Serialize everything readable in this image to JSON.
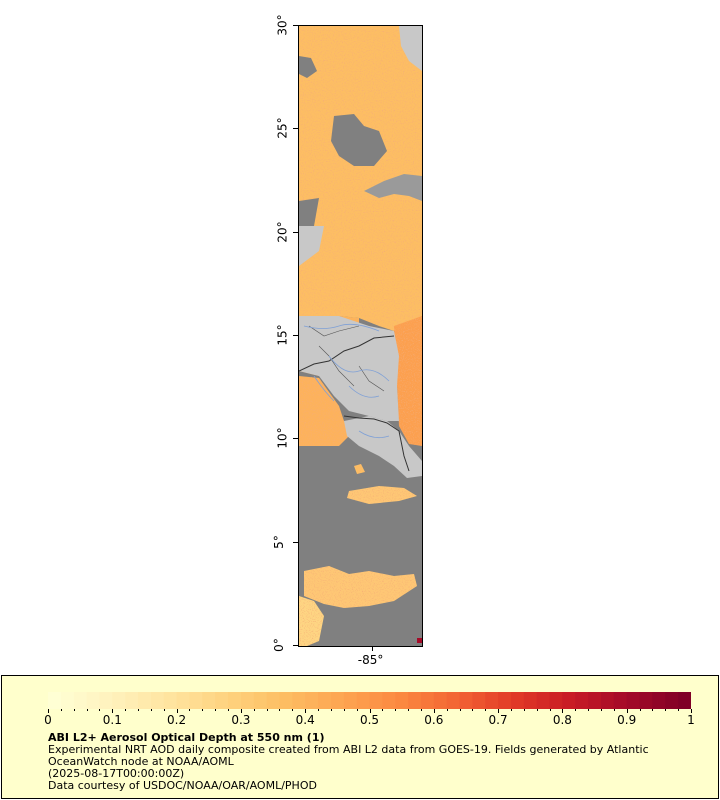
{
  "map": {
    "lat_labels": [
      "0°",
      "5°",
      "10°",
      "15°",
      "20°",
      "25°",
      "30°"
    ],
    "lat_values": [
      0,
      5,
      10,
      15,
      20,
      25,
      30
    ],
    "lon_labels": [
      "-85°"
    ],
    "lon_values": [
      -85
    ],
    "colors": {
      "land": "#c8c8c8",
      "no_data": "#808080",
      "border": "#333333",
      "rivers": "#7fa0d6"
    }
  },
  "legend": {
    "tick_labels": [
      "0",
      "0.1",
      "0.2",
      "0.3",
      "0.4",
      "0.5",
      "0.6",
      "0.7",
      "0.8",
      "0.9",
      "1"
    ],
    "title": "ABI L2+ Aerosol Optical Depth at 550 nm (1)",
    "line1": "Experimental NRT AOD daily composite created from ABI L2 data from GOES-19. Fields generated by Atlantic",
    "line2": "OceanWatch node at NOAA/AOML",
    "line3": "(2025-08-17T00:00:00Z)",
    "line4": "Data courtesy of USDOC/NOAA/OAR/AOML/PHOD",
    "colormap": [
      "#ffffd4",
      "#fff2bd",
      "#ffe4a0",
      "#fed37f",
      "#fdbe63",
      "#fda552",
      "#fc8a41",
      "#f36534",
      "#e23b27",
      "#c81b25",
      "#a40a28",
      "#800026"
    ]
  }
}
